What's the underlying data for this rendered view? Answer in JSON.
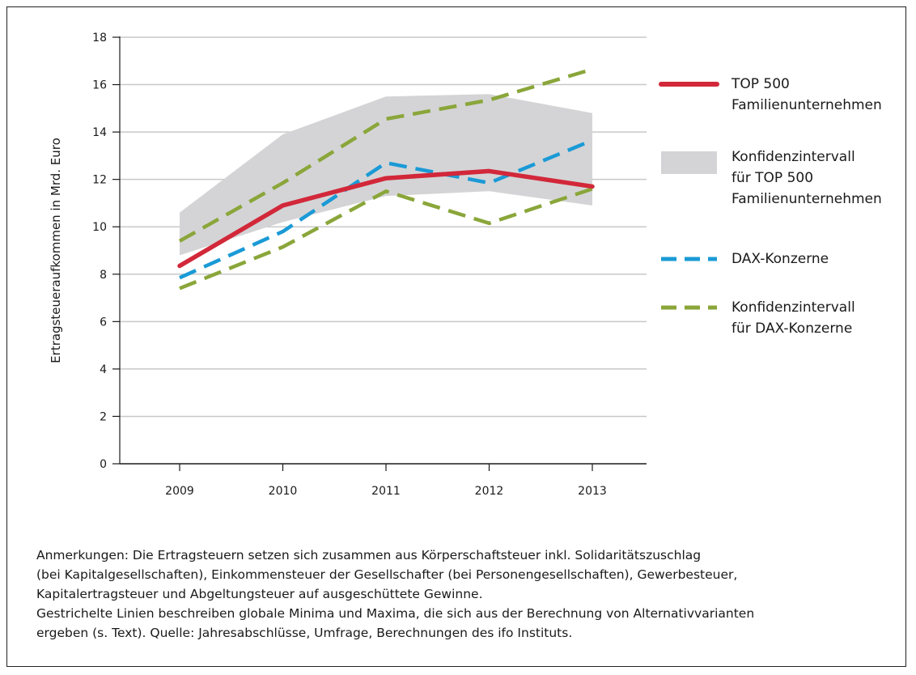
{
  "chart_data": {
    "type": "line",
    "title": "",
    "xlabel": "",
    "ylabel": "Ertragsteueraufkommen in Mrd. Euro",
    "x": [
      "2009",
      "2010",
      "2011",
      "2012",
      "2013"
    ],
    "ylim": [
      0,
      18
    ],
    "yticks": [
      0,
      2,
      4,
      6,
      8,
      10,
      12,
      14,
      16,
      18
    ],
    "grid": true,
    "legend_position": "right",
    "band": {
      "name": "Konfidenzintervall für TOP 500 Familienunternehmen",
      "color": "#d4d4d6",
      "lower": [
        8.8,
        10.2,
        11.3,
        11.5,
        10.9
      ],
      "upper": [
        10.6,
        13.9,
        15.5,
        15.6,
        14.8
      ]
    },
    "series": [
      {
        "name": "TOP 500 Familienunternehmen",
        "color": "#d2283a",
        "dashed": false,
        "values": [
          8.35,
          10.9,
          12.05,
          12.35,
          11.7
        ]
      },
      {
        "name": "DAX-Konzerne",
        "color": "#1a9ad6",
        "dashed": true,
        "values": [
          7.85,
          9.8,
          12.7,
          11.85,
          13.65
        ]
      },
      {
        "name": "Konfidenzintervall für DAX-Konzerne (Maximum)",
        "color": "#8aa63a",
        "dashed": true,
        "values": [
          9.4,
          11.85,
          14.55,
          15.35,
          16.65
        ]
      },
      {
        "name": "Konfidenzintervall für DAX-Konzerne (Minimum)",
        "color": "#8aa63a",
        "dashed": true,
        "values": [
          7.4,
          9.15,
          11.5,
          10.15,
          11.6
        ]
      }
    ],
    "legend": [
      {
        "kind": "line",
        "color": "#d2283a",
        "dashed": false,
        "lines": [
          "TOP 500",
          "Familienunternehmen"
        ]
      },
      {
        "kind": "band",
        "color": "#d4d4d6",
        "dashed": false,
        "lines": [
          "Konfidenzintervall",
          "für TOP 500",
          "Familienunternehmen"
        ]
      },
      {
        "kind": "line",
        "color": "#1a9ad6",
        "dashed": true,
        "lines": [
          "DAX-Konzerne"
        ]
      },
      {
        "kind": "line",
        "color": "#8aa63a",
        "dashed": true,
        "lines": [
          "Konfidenzintervall",
          "für DAX-Konzerne"
        ]
      }
    ]
  },
  "notes": [
    "Anmerkungen: Die Ertragsteuern setzen sich zusammen aus Körperschaftsteuer inkl. Solidaritätszuschlag",
    "(bei Kapitalgesellschaften), Einkommensteuer der Gesellschafter (bei Personengesellschaften), Gewerbesteuer,",
    "Kapitalertragsteuer und Abgeltungsteuer auf ausgeschüttete Gewinne.",
    "Gestrichelte Linien beschreiben globale Minima und Maxima, die sich aus der Berechnung von Alternativvarianten",
    "ergeben (s. Text). Quelle: Jahresabschlüsse, Umfrage, Berechnungen des ifo Instituts."
  ]
}
